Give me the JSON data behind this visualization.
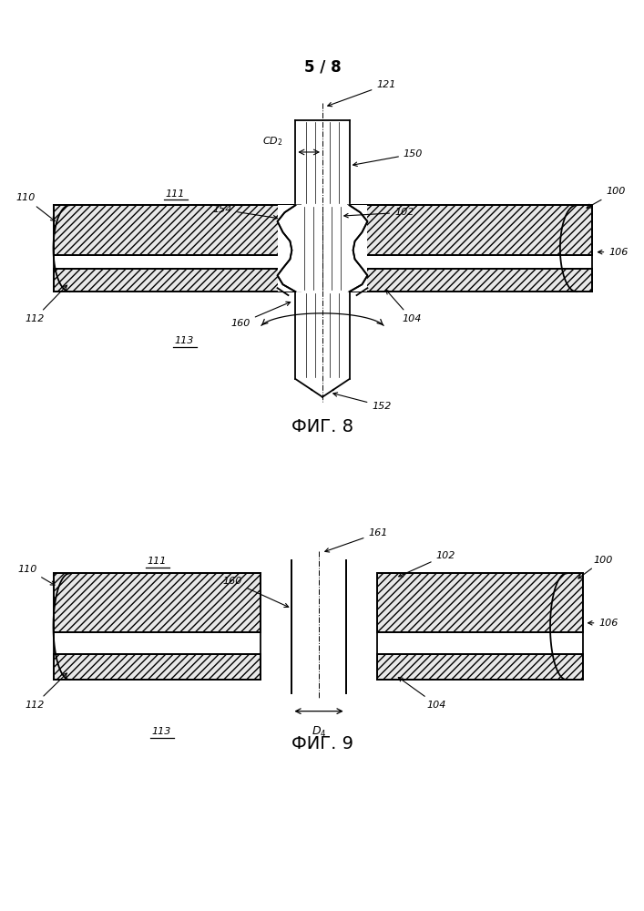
{
  "bg_color": "#ffffff",
  "line_color": "#000000",
  "fig8_title": "ФИГ. 8",
  "fig9_title": "ФИГ. 9",
  "page_label": "5 / 8"
}
